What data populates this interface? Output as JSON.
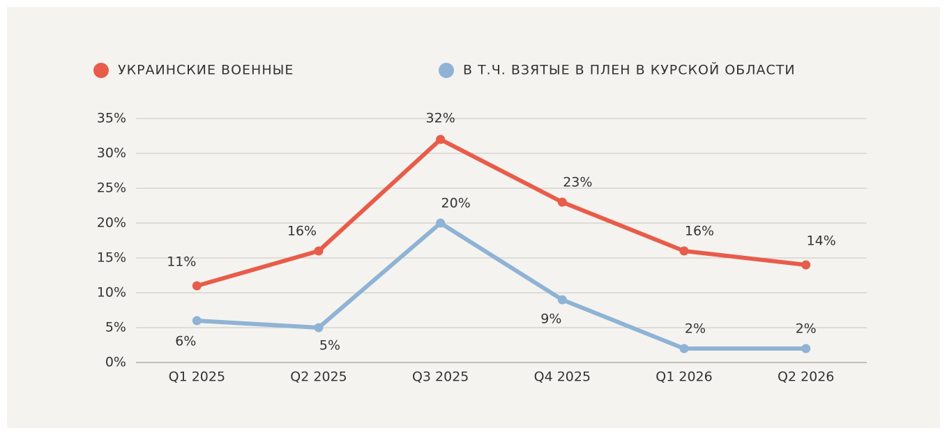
{
  "chart_data": {
    "type": "line",
    "categories": [
      "Q1 2025",
      "Q2 2025",
      "Q3 2025",
      "Q4 2025",
      "Q1 2026",
      "Q2 2026"
    ],
    "series": [
      {
        "name": "УКРАИНСКИЕ ВОЕННЫЕ",
        "color": "#e85c4a",
        "values": [
          11,
          16,
          32,
          23,
          16,
          14
        ],
        "value_labels": [
          "11%",
          "16%",
          "32%",
          "23%",
          "16%",
          "14%"
        ]
      },
      {
        "name": "В Т.Ч. ВЗЯТЫЕ В ПЛЕН В КУРСКОЙ ОБЛАСТИ",
        "color": "#8fb3d5",
        "values": [
          6,
          5,
          20,
          9,
          2,
          2
        ],
        "value_labels": [
          "6%",
          "5%",
          "20%",
          "9%",
          "2%",
          "2%"
        ]
      }
    ],
    "ylim": [
      0,
      35
    ],
    "yticks": [
      {
        "value": 0,
        "label": "0%"
      },
      {
        "value": 5,
        "label": "5%"
      },
      {
        "value": 10,
        "label": "10%"
      },
      {
        "value": 15,
        "label": "15%"
      },
      {
        "value": 20,
        "label": "20%"
      },
      {
        "value": 25,
        "label": "25%"
      },
      {
        "value": 30,
        "label": "30%"
      },
      {
        "value": 35,
        "label": "35%"
      }
    ],
    "grid": true
  }
}
